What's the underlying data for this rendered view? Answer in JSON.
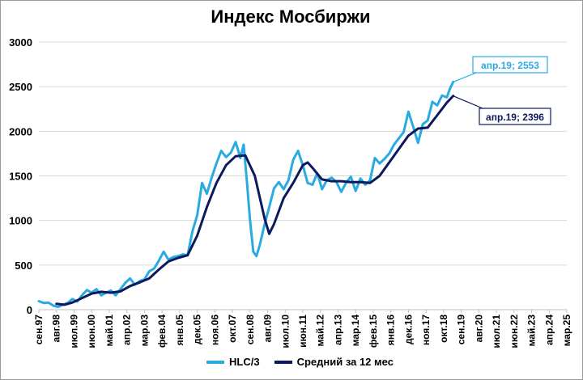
{
  "chart_data": {
    "type": "line",
    "title": "Индекс Мосбиржи",
    "xlabel": "",
    "ylabel": "",
    "ylim": [
      0,
      3000
    ],
    "yticks": [
      0,
      500,
      1000,
      1500,
      2000,
      2500,
      3000
    ],
    "xtick_labels": [
      "сен.97",
      "авг.98",
      "июл.99",
      "июн.00",
      "май.01",
      "апр.02",
      "мар.03",
      "фев.04",
      "янв.05",
      "дек.05",
      "ноя.06",
      "окт.07",
      "сен.08",
      "авг.09",
      "июл.10",
      "июн.11",
      "май.12",
      "апр.13",
      "мар.14",
      "фев.15",
      "янв.16",
      "дек.16",
      "ноя.17",
      "окт.18",
      "сен.19",
      "авг.20",
      "июл.21",
      "июн.22",
      "май.23",
      "апр.24",
      "мар.25"
    ],
    "x_start": "сен.97",
    "x_end": "мар.25",
    "grid": true,
    "legend_position": "bottom",
    "series": [
      {
        "name": "HLC/3",
        "color": "#29abe2",
        "values": [
          {
            "x": "1997-09",
            "y": 95
          },
          {
            "x": "1997-12",
            "y": 75
          },
          {
            "x": "1998-03",
            "y": 80
          },
          {
            "x": "1998-06",
            "y": 45
          },
          {
            "x": "1998-09",
            "y": 30
          },
          {
            "x": "1998-12",
            "y": 55
          },
          {
            "x": "1999-03",
            "y": 75
          },
          {
            "x": "1999-06",
            "y": 120
          },
          {
            "x": "1999-09",
            "y": 90
          },
          {
            "x": "1999-12",
            "y": 160
          },
          {
            "x": "2000-03",
            "y": 220
          },
          {
            "x": "2000-06",
            "y": 190
          },
          {
            "x": "2000-09",
            "y": 230
          },
          {
            "x": "2000-12",
            "y": 160
          },
          {
            "x": "2001-03",
            "y": 190
          },
          {
            "x": "2001-06",
            "y": 215
          },
          {
            "x": "2001-09",
            "y": 160
          },
          {
            "x": "2001-12",
            "y": 230
          },
          {
            "x": "2002-03",
            "y": 300
          },
          {
            "x": "2002-06",
            "y": 350
          },
          {
            "x": "2002-09",
            "y": 280
          },
          {
            "x": "2002-12",
            "y": 320
          },
          {
            "x": "2003-03",
            "y": 340
          },
          {
            "x": "2003-06",
            "y": 430
          },
          {
            "x": "2003-09",
            "y": 460
          },
          {
            "x": "2003-12",
            "y": 550
          },
          {
            "x": "2004-03",
            "y": 650
          },
          {
            "x": "2004-06",
            "y": 560
          },
          {
            "x": "2004-09",
            "y": 590
          },
          {
            "x": "2004-12",
            "y": 600
          },
          {
            "x": "2005-03",
            "y": 620
          },
          {
            "x": "2005-06",
            "y": 610
          },
          {
            "x": "2005-09",
            "y": 880
          },
          {
            "x": "2005-12",
            "y": 1060
          },
          {
            "x": "2006-03",
            "y": 1420
          },
          {
            "x": "2006-06",
            "y": 1300
          },
          {
            "x": "2006-09",
            "y": 1480
          },
          {
            "x": "2006-12",
            "y": 1640
          },
          {
            "x": "2007-03",
            "y": 1780
          },
          {
            "x": "2007-06",
            "y": 1710
          },
          {
            "x": "2007-09",
            "y": 1760
          },
          {
            "x": "2007-12",
            "y": 1880
          },
          {
            "x": "2008-03",
            "y": 1700
          },
          {
            "x": "2008-05",
            "y": 1850
          },
          {
            "x": "2008-07",
            "y": 1450
          },
          {
            "x": "2008-09",
            "y": 1000
          },
          {
            "x": "2008-11",
            "y": 650
          },
          {
            "x": "2009-01",
            "y": 600
          },
          {
            "x": "2009-03",
            "y": 720
          },
          {
            "x": "2009-06",
            "y": 950
          },
          {
            "x": "2009-09",
            "y": 1150
          },
          {
            "x": "2009-12",
            "y": 1360
          },
          {
            "x": "2010-03",
            "y": 1430
          },
          {
            "x": "2010-06",
            "y": 1350
          },
          {
            "x": "2010-09",
            "y": 1450
          },
          {
            "x": "2010-12",
            "y": 1680
          },
          {
            "x": "2011-03",
            "y": 1780
          },
          {
            "x": "2011-06",
            "y": 1620
          },
          {
            "x": "2011-09",
            "y": 1420
          },
          {
            "x": "2011-12",
            "y": 1400
          },
          {
            "x": "2012-03",
            "y": 1530
          },
          {
            "x": "2012-06",
            "y": 1350
          },
          {
            "x": "2012-09",
            "y": 1450
          },
          {
            "x": "2012-12",
            "y": 1480
          },
          {
            "x": "2013-03",
            "y": 1430
          },
          {
            "x": "2013-06",
            "y": 1320
          },
          {
            "x": "2013-09",
            "y": 1420
          },
          {
            "x": "2013-12",
            "y": 1490
          },
          {
            "x": "2014-03",
            "y": 1330
          },
          {
            "x": "2014-06",
            "y": 1470
          },
          {
            "x": "2014-09",
            "y": 1400
          },
          {
            "x": "2014-12",
            "y": 1450
          },
          {
            "x": "2015-03",
            "y": 1700
          },
          {
            "x": "2015-06",
            "y": 1640
          },
          {
            "x": "2015-09",
            "y": 1690
          },
          {
            "x": "2015-12",
            "y": 1750
          },
          {
            "x": "2016-03",
            "y": 1850
          },
          {
            "x": "2016-06",
            "y": 1920
          },
          {
            "x": "2016-09",
            "y": 1990
          },
          {
            "x": "2016-12",
            "y": 2220
          },
          {
            "x": "2017-03",
            "y": 2050
          },
          {
            "x": "2017-06",
            "y": 1870
          },
          {
            "x": "2017-09",
            "y": 2080
          },
          {
            "x": "2017-12",
            "y": 2120
          },
          {
            "x": "2018-03",
            "y": 2330
          },
          {
            "x": "2018-06",
            "y": 2290
          },
          {
            "x": "2018-09",
            "y": 2400
          },
          {
            "x": "2018-12",
            "y": 2380
          },
          {
            "x": "2019-02",
            "y": 2480
          },
          {
            "x": "2019-04",
            "y": 2553
          }
        ]
      },
      {
        "name": "Средний за 12 мес",
        "color": "#0b1a5c",
        "values": [
          {
            "x": "1998-08",
            "y": 65
          },
          {
            "x": "1999-01",
            "y": 55
          },
          {
            "x": "1999-06",
            "y": 80
          },
          {
            "x": "1999-12",
            "y": 130
          },
          {
            "x": "2000-06",
            "y": 180
          },
          {
            "x": "2000-12",
            "y": 200
          },
          {
            "x": "2001-06",
            "y": 190
          },
          {
            "x": "2001-12",
            "y": 205
          },
          {
            "x": "2002-06",
            "y": 265
          },
          {
            "x": "2002-12",
            "y": 305
          },
          {
            "x": "2003-06",
            "y": 350
          },
          {
            "x": "2003-12",
            "y": 450
          },
          {
            "x": "2004-06",
            "y": 540
          },
          {
            "x": "2004-12",
            "y": 580
          },
          {
            "x": "2005-06",
            "y": 610
          },
          {
            "x": "2005-12",
            "y": 830
          },
          {
            "x": "2006-06",
            "y": 1150
          },
          {
            "x": "2006-12",
            "y": 1420
          },
          {
            "x": "2007-06",
            "y": 1620
          },
          {
            "x": "2007-12",
            "y": 1720
          },
          {
            "x": "2008-06",
            "y": 1730
          },
          {
            "x": "2008-12",
            "y": 1500
          },
          {
            "x": "2009-06",
            "y": 1030
          },
          {
            "x": "2009-09",
            "y": 850
          },
          {
            "x": "2009-12",
            "y": 960
          },
          {
            "x": "2010-06",
            "y": 1250
          },
          {
            "x": "2010-12",
            "y": 1420
          },
          {
            "x": "2011-06",
            "y": 1620
          },
          {
            "x": "2011-09",
            "y": 1650
          },
          {
            "x": "2011-12",
            "y": 1590
          },
          {
            "x": "2012-06",
            "y": 1460
          },
          {
            "x": "2012-12",
            "y": 1440
          },
          {
            "x": "2013-06",
            "y": 1440
          },
          {
            "x": "2013-12",
            "y": 1430
          },
          {
            "x": "2014-06",
            "y": 1430
          },
          {
            "x": "2014-12",
            "y": 1420
          },
          {
            "x": "2015-06",
            "y": 1500
          },
          {
            "x": "2015-12",
            "y": 1650
          },
          {
            "x": "2016-06",
            "y": 1800
          },
          {
            "x": "2016-12",
            "y": 1950
          },
          {
            "x": "2017-06",
            "y": 2030
          },
          {
            "x": "2017-12",
            "y": 2040
          },
          {
            "x": "2018-06",
            "y": 2180
          },
          {
            "x": "2018-12",
            "y": 2320
          },
          {
            "x": "2019-04",
            "y": 2396
          }
        ]
      }
    ],
    "annotations": [
      {
        "series": 0,
        "text": "апр.19; 2553",
        "color": "#29abe2"
      },
      {
        "series": 1,
        "text": "апр.19; 2396",
        "color": "#0b1a5c"
      }
    ]
  }
}
